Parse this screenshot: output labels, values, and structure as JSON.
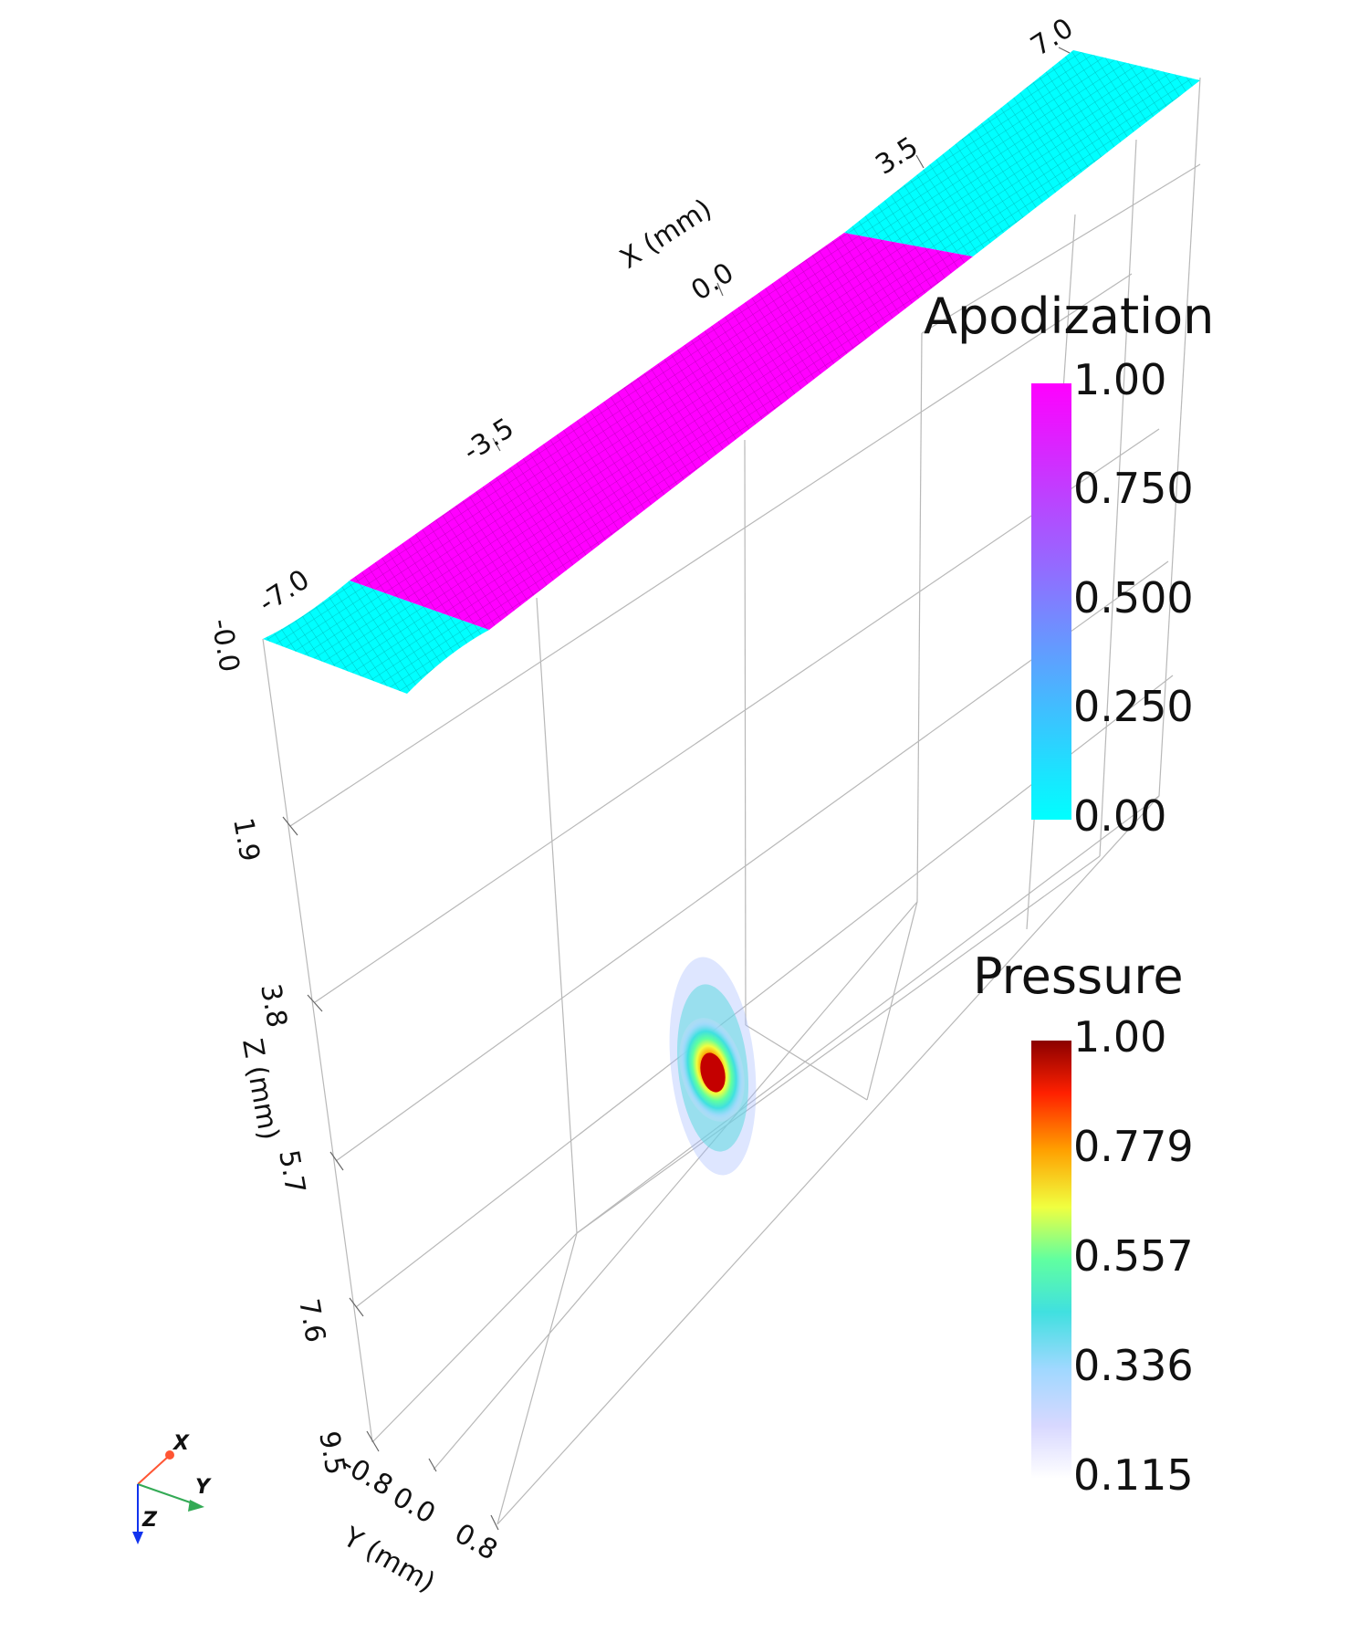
{
  "axes": {
    "x": {
      "title": "X (mm)",
      "ticks": [
        "-7.0",
        "-3.5",
        "0.0",
        "3.5",
        "7.0"
      ]
    },
    "y": {
      "title": "Y (mm)",
      "ticks": [
        "-0.8",
        "0.0",
        "0.8"
      ]
    },
    "z": {
      "title": "Z (mm)",
      "ticks": [
        "-0.0",
        "1.9",
        "3.8",
        "5.7",
        "7.6",
        "9.5"
      ]
    }
  },
  "legends": {
    "apodization": {
      "title": "Apodization",
      "ticks": [
        "1.00",
        "0.750",
        "0.500",
        "0.250",
        "0.00"
      ],
      "colors": [
        "#ff00ff",
        "#bf3fff",
        "#7f7fff",
        "#3fbfff",
        "#00ffff"
      ]
    },
    "pressure": {
      "title": "Pressure",
      "ticks": [
        "1.00",
        "0.779",
        "0.557",
        "0.336",
        "0.115"
      ],
      "colors": [
        "#8b0000",
        "#ff2000",
        "#ffa000",
        "#f0ff40",
        "#60ffa0",
        "#40e0e0",
        "#a0d8ff",
        "#d8d8ff",
        "#ffffff"
      ]
    }
  },
  "transducer": {
    "active_color": "#ff00ff",
    "inactive_color": "#00ffff"
  },
  "orientation_triad": {
    "x_label": "X",
    "y_label": "Y",
    "z_label": "Z",
    "x_color": "#ff5533",
    "y_color": "#33aa55",
    "z_color": "#1133ee"
  }
}
